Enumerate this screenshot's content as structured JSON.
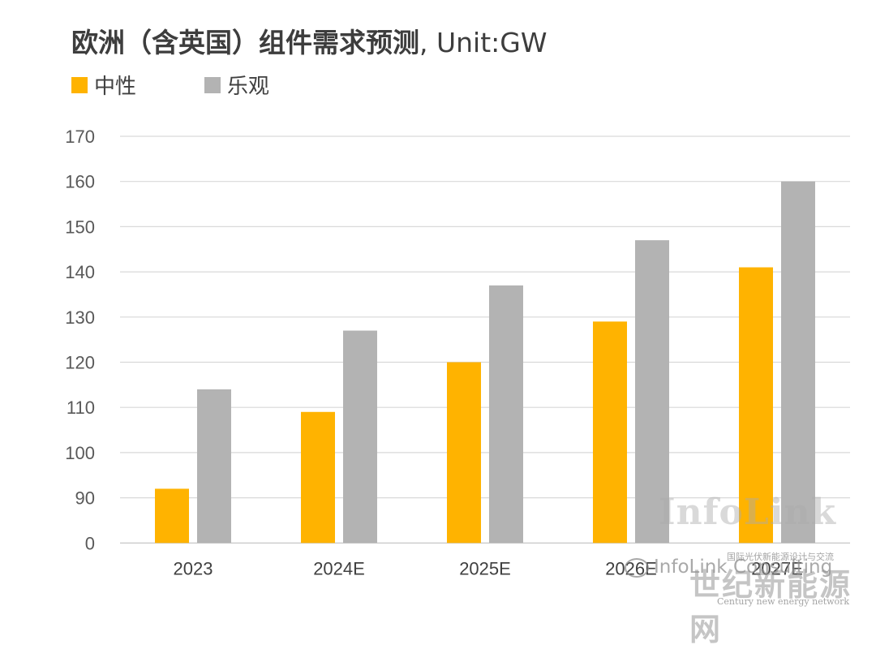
{
  "chart_data": {
    "type": "bar",
    "title": "欧洲（含英国）组件需求预测",
    "title_unit": ", Unit:GW",
    "categories": [
      "2023",
      "2024E",
      "2025E",
      "2026E",
      "2027E"
    ],
    "series": [
      {
        "name": "中性",
        "color": "#FFB300",
        "values": [
          92,
          109,
          120,
          129,
          141
        ]
      },
      {
        "name": "乐观",
        "color": "#B3B3B3",
        "values": [
          114,
          127,
          137,
          147,
          160
        ]
      }
    ],
    "yticks": [
      "0",
      "90",
      "100",
      "110",
      "120",
      "130",
      "140",
      "150",
      "160",
      "170"
    ],
    "ylim": [
      80,
      170
    ],
    "axis_break": true,
    "grid": true,
    "legend_position": "top-left"
  },
  "watermarks": {
    "infolink": "InfoLink",
    "wechat": "InfoLink Consulting",
    "site": "世纪新能源网",
    "site_sub": "Century new energy network",
    "small_note": "国际光伏新能源设计与交流"
  },
  "icons": {
    "wechat": "wechat-icon"
  }
}
